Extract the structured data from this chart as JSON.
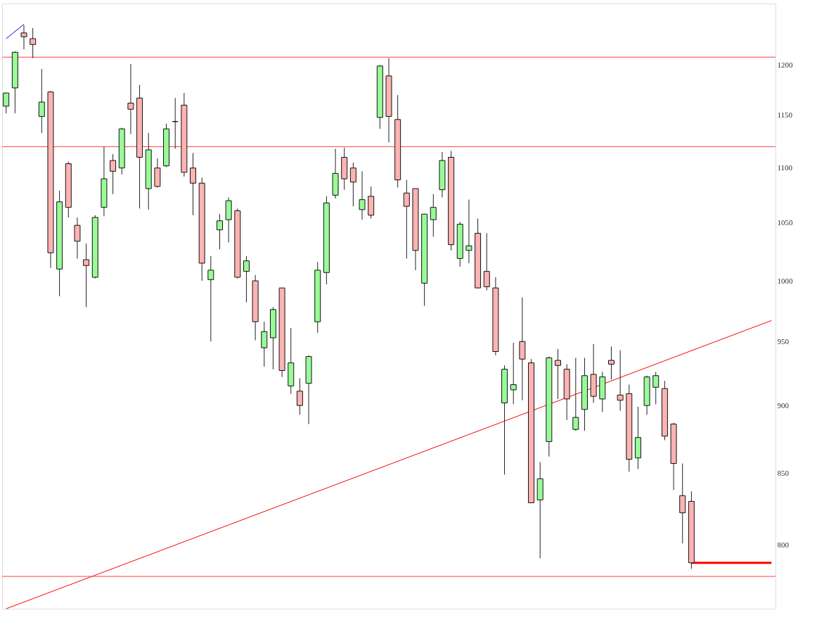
{
  "chart_data": {
    "type": "candlestick",
    "categories": [
      null,
      null,
      null,
      null,
      null,
      null,
      null,
      null,
      null,
      null,
      null,
      null,
      null,
      null,
      null,
      null,
      null,
      null,
      null,
      null,
      null,
      null,
      null,
      null,
      null,
      null,
      null,
      null,
      null,
      null,
      null,
      null,
      null,
      null,
      null,
      null,
      null,
      null,
      null,
      null,
      null,
      null,
      null,
      null,
      null,
      null,
      null,
      null,
      null,
      null,
      null,
      null,
      null,
      null,
      null,
      null,
      null,
      null,
      null,
      null,
      null,
      null,
      null,
      null,
      null,
      null,
      null,
      null,
      null,
      null,
      null,
      null,
      null,
      null,
      null,
      null,
      null,
      null,
      null,
      null,
      null,
      null,
      null,
      null,
      null,
      null,
      null
    ],
    "ohlc": [
      [
        1159,
        1172,
        1152,
        1172
      ],
      [
        1177,
        1214,
        1152,
        1213
      ],
      [
        1233,
        1241,
        1216,
        1229
      ],
      [
        1227,
        1238,
        1207,
        1221
      ],
      [
        1149,
        1196,
        1133,
        1163
      ],
      [
        1173,
        1174,
        1011,
        1024
      ],
      [
        1010,
        1079,
        987,
        1069
      ],
      [
        1104,
        1106,
        1055,
        1064
      ],
      [
        1048,
        1055,
        1019,
        1034
      ],
      [
        1018,
        1032,
        978,
        1013
      ],
      [
        1003,
        1057,
        1002,
        1055
      ],
      [
        1064,
        1120,
        1056,
        1090
      ],
      [
        1107,
        1113,
        1076,
        1097
      ],
      [
        1100,
        1138,
        1094,
        1137
      ],
      [
        1162,
        1201,
        1132,
        1156
      ],
      [
        1167,
        1180,
        1063,
        1110
      ],
      [
        1081,
        1133,
        1062,
        1117
      ],
      [
        1100,
        1109,
        1082,
        1083
      ],
      [
        1102,
        1142,
        1101,
        1137
      ],
      [
        1144,
        1167,
        1118,
        1144
      ],
      [
        1160,
        1172,
        1092,
        1096
      ],
      [
        1100,
        1114,
        1057,
        1086
      ],
      [
        1086,
        1091,
        1000,
        1015
      ],
      [
        1001,
        1021,
        950,
        1009
      ],
      [
        1044,
        1058,
        1027,
        1052
      ],
      [
        1053,
        1073,
        1033,
        1070
      ],
      [
        1061,
        1063,
        1002,
        1003
      ],
      [
        1008,
        1021,
        982,
        1017
      ],
      [
        1000,
        1005,
        951,
        966
      ],
      [
        945,
        966,
        930,
        958
      ],
      [
        953,
        978,
        928,
        976
      ],
      [
        994,
        994,
        922,
        927
      ],
      [
        915,
        961,
        909,
        933
      ],
      [
        911,
        921,
        893,
        900
      ],
      [
        917,
        939,
        886,
        938
      ],
      [
        966,
        1016,
        957,
        1009
      ],
      [
        1007,
        1074,
        997,
        1068
      ],
      [
        1075,
        1118,
        1072,
        1095
      ],
      [
        1110,
        1119,
        1080,
        1090
      ],
      [
        1100,
        1105,
        1065,
        1087
      ],
      [
        1062,
        1097,
        1053,
        1071
      ],
      [
        1074,
        1083,
        1054,
        1057
      ],
      [
        1148,
        1200,
        1137,
        1199
      ],
      [
        1189,
        1207,
        1124,
        1149
      ],
      [
        1146,
        1170,
        1082,
        1089
      ],
      [
        1077,
        1089,
        1019,
        1065
      ],
      [
        1081,
        1081,
        1009,
        1026
      ],
      [
        998,
        1058,
        979,
        1058
      ],
      [
        1053,
        1076,
        1038,
        1064
      ],
      [
        1080,
        1115,
        1073,
        1107
      ],
      [
        1110,
        1116,
        1026,
        1031
      ],
      [
        1019,
        1051,
        1012,
        1049
      ],
      [
        1026,
        1071,
        1015,
        1030
      ],
      [
        1041,
        1054,
        994,
        994
      ],
      [
        1008,
        1041,
        992,
        995
      ],
      [
        994,
        1003,
        939,
        942
      ],
      [
        902,
        931,
        849,
        928
      ],
      [
        912,
        949,
        901,
        916
      ],
      [
        950,
        986,
        904,
        936
      ],
      [
        933,
        936,
        829,
        829
      ],
      [
        831,
        858,
        791,
        846
      ],
      [
        873,
        938,
        862,
        937
      ],
      [
        935,
        944,
        905,
        931
      ],
      [
        928,
        932,
        889,
        905
      ],
      [
        882,
        937,
        881,
        891
      ],
      [
        897,
        937,
        881,
        923
      ],
      [
        924,
        948,
        902,
        907
      ],
      [
        905,
        926,
        895,
        922
      ],
      [
        935,
        946,
        920,
        932
      ],
      [
        908,
        943,
        896,
        904
      ],
      [
        909,
        916,
        851,
        860
      ],
      [
        861,
        899,
        853,
        876
      ],
      [
        900,
        923,
        893,
        922
      ],
      [
        914,
        926,
        901,
        923
      ],
      [
        913,
        919,
        874,
        877
      ],
      [
        886,
        887,
        838,
        857
      ],
      [
        834,
        857,
        801,
        822
      ],
      [
        830,
        837,
        784,
        788
      ],
      null,
      null,
      null,
      null,
      null,
      null,
      null,
      null,
      null
    ],
    "series": [
      {
        "type": "line",
        "color": "#ff0000",
        "values": [
          758,
          null,
          null,
          null,
          null,
          null,
          null,
          null,
          null,
          null,
          null,
          null,
          null,
          null,
          null,
          null,
          null,
          null,
          null,
          null,
          null,
          null,
          null,
          null,
          null,
          null,
          null,
          null,
          null,
          null,
          null,
          null,
          null,
          null,
          null,
          null,
          null,
          null,
          null,
          null,
          null,
          null,
          null,
          null,
          null,
          null,
          null,
          null,
          null,
          null,
          null,
          null,
          null,
          null,
          null,
          null,
          null,
          null,
          null,
          null,
          null,
          null,
          null,
          null,
          null,
          null,
          null,
          null,
          null,
          null,
          null,
          null,
          null,
          null,
          null,
          null,
          null,
          null,
          null,
          null,
          null,
          null,
          null,
          null,
          null,
          null,
          967
        ]
      },
      {
        "type": "line",
        "color": "#ff0000",
        "values": [
          null,
          null,
          null,
          null,
          null,
          null,
          null,
          null,
          null,
          null,
          null,
          null,
          null,
          null,
          null,
          null,
          null,
          null,
          null,
          null,
          null,
          null,
          null,
          null,
          null,
          null,
          null,
          null,
          null,
          null,
          null,
          null,
          null,
          null,
          null,
          null,
          null,
          null,
          null,
          null,
          null,
          null,
          null,
          null,
          null,
          null,
          null,
          null,
          null,
          null,
          null,
          null,
          null,
          null,
          null,
          null,
          null,
          null,
          null,
          null,
          null,
          null,
          null,
          null,
          null,
          null,
          null,
          null,
          null,
          null,
          null,
          null,
          null,
          null,
          null,
          null,
          null,
          788,
          null,
          null,
          null,
          null,
          null,
          null,
          null,
          null,
          788
        ]
      },
      {
        "type": "line",
        "color": "#0000ff",
        "values": [
          1227,
          null,
          1242,
          null,
          null,
          null,
          null,
          null,
          null,
          null,
          null,
          null,
          null,
          null,
          null,
          null,
          null,
          null,
          null,
          null,
          null,
          null,
          null,
          null,
          null,
          null,
          null,
          null,
          null,
          null,
          null,
          null,
          null,
          null,
          null,
          null,
          null,
          null,
          null,
          null,
          null,
          null,
          null,
          null,
          null,
          null,
          null,
          null,
          null,
          null,
          null,
          null,
          null,
          null,
          null,
          null,
          null,
          null,
          null,
          null,
          null,
          null,
          null,
          null,
          null,
          null,
          null,
          null,
          null,
          null,
          null,
          null,
          null,
          null,
          null,
          null,
          null,
          null,
          null,
          null,
          null,
          null,
          null,
          null,
          null,
          null,
          null
        ]
      }
    ],
    "ref_lines": [
      {
        "axis": "y",
        "value": 1208,
        "color": "#ff4040"
      },
      {
        "axis": "y",
        "value": 1120,
        "color": "#ff4040"
      },
      {
        "axis": "y",
        "value": 779,
        "color": "#ff4040"
      }
    ],
    "ylim": [
      758,
      1264
    ],
    "yticks": [
      800,
      850,
      900,
      950,
      1000,
      1050,
      1100,
      1150,
      1200
    ],
    "log": true,
    "tick_labels": "y"
  }
}
